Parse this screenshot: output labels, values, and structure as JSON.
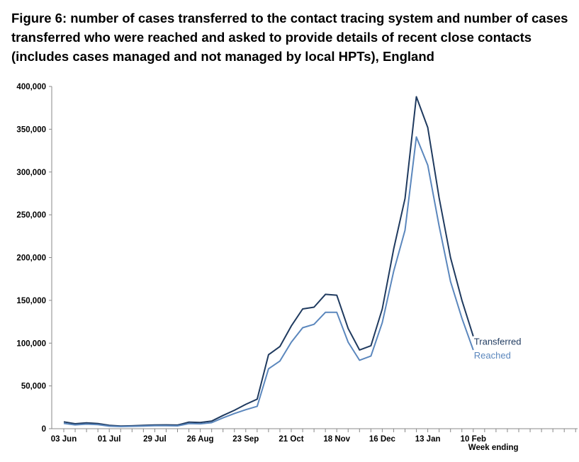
{
  "title": "Figure 6: number of cases transferred to the contact tracing system and number of cases transferred who were reached and asked to provide details of recent close contacts (includes cases managed and not managed by local HPTs), England",
  "chart_data": {
    "type": "line",
    "title": "Figure 6: number of cases transferred to the contact tracing system and number of cases transferred who were reached and asked to provide details of recent close contacts (includes cases managed and not managed by local HPTs), England",
    "xlabel": "Week ending",
    "ylabel": "",
    "ylim": [
      0,
      400000
    ],
    "yticks": [
      "0",
      "50,000",
      "100,000",
      "150,000",
      "200,000",
      "250,000",
      "300,000",
      "350,000",
      "400,000"
    ],
    "yticks_values": [
      0,
      50000,
      100000,
      150000,
      200000,
      250000,
      300000,
      350000,
      400000
    ],
    "xtick_labels": [
      "03 Jun",
      "01 Jul",
      "29 Jul",
      "26 Aug",
      "23 Sep",
      "21 Oct",
      "18 Nov",
      "16 Dec",
      "13 Jan",
      "10 Feb"
    ],
    "x": [
      "03 Jun",
      "10 Jun",
      "17 Jun",
      "24 Jun",
      "01 Jul",
      "08 Jul",
      "15 Jul",
      "22 Jul",
      "29 Jul",
      "05 Aug",
      "12 Aug",
      "19 Aug",
      "26 Aug",
      "02 Sep",
      "09 Sep",
      "16 Sep",
      "23 Sep",
      "30 Sep",
      "07 Oct",
      "14 Oct",
      "21 Oct",
      "28 Oct",
      "04 Nov",
      "11 Nov",
      "18 Nov",
      "25 Nov",
      "02 Dec",
      "09 Dec",
      "16 Dec",
      "23 Dec",
      "30 Dec",
      "06 Jan",
      "13 Jan",
      "20 Jan",
      "27 Jan",
      "03 Feb",
      "10 Feb"
    ],
    "series": [
      {
        "name": "Transferred",
        "color": "#1f3a5f",
        "values": [
          8000,
          5800,
          6900,
          6000,
          3900,
          3100,
          3400,
          3900,
          4300,
          4500,
          4200,
          7700,
          7200,
          8900,
          15500,
          21500,
          28500,
          34500,
          86500,
          96000,
          120000,
          140000,
          142000,
          157000,
          156000,
          117000,
          92000,
          97000,
          140000,
          210000,
          269000,
          388000,
          352000,
          270000,
          200000,
          150000,
          108000
        ]
      },
      {
        "name": "Reached",
        "color": "#5b87bd",
        "values": [
          6200,
          4500,
          5400,
          4700,
          3000,
          2500,
          2800,
          3100,
          3500,
          3600,
          3300,
          6000,
          5700,
          7000,
          12700,
          17700,
          22200,
          26200,
          70000,
          79000,
          101000,
          118000,
          122000,
          136000,
          136000,
          101000,
          80000,
          85000,
          124000,
          184000,
          232000,
          341000,
          308000,
          237000,
          172000,
          129000,
          92000
        ]
      }
    ],
    "grid": false
  }
}
